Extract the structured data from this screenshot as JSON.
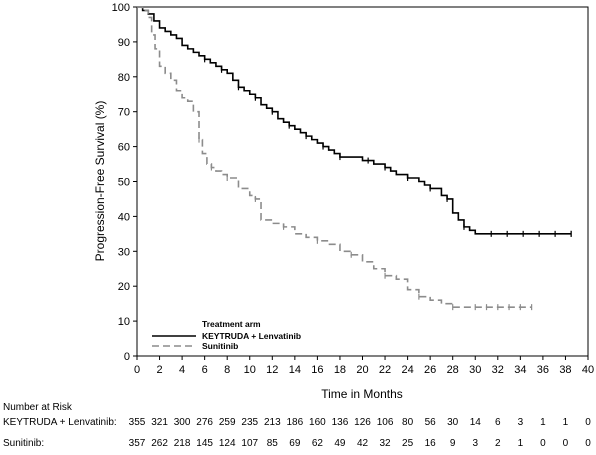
{
  "chart_data": {
    "type": "line",
    "subtype": "kaplan-meier",
    "xlabel": "Time in Months",
    "ylabel": "Progression-Free Survival (%)",
    "xlim": [
      0,
      40
    ],
    "ylim": [
      0,
      100
    ],
    "xticks": [
      0,
      2,
      4,
      6,
      8,
      10,
      12,
      14,
      16,
      18,
      20,
      22,
      24,
      26,
      28,
      30,
      32,
      34,
      36,
      38,
      40
    ],
    "yticks": [
      0,
      10,
      20,
      30,
      40,
      50,
      60,
      70,
      80,
      90,
      100
    ],
    "legend": {
      "title": "Treatment arm",
      "placement": "bottom-left",
      "entries": [
        "KEYTRUDA + Lenvatinib",
        "Sunitinib"
      ]
    },
    "series": [
      {
        "name": "KEYTRUDA + Lenvatinib",
        "color": "#000000",
        "dash": "solid",
        "x": [
          0,
          0.5,
          1,
          1.5,
          2,
          2.5,
          3,
          3.5,
          4,
          4.5,
          5,
          5.5,
          6,
          6.5,
          7,
          7.5,
          8,
          8.5,
          9,
          9.5,
          10,
          10.5,
          11,
          11.5,
          12,
          12.5,
          13,
          13.5,
          14,
          14.5,
          15,
          15.5,
          16,
          16.5,
          17,
          17.5,
          18,
          19,
          20,
          20.5,
          21,
          21.5,
          22,
          22.5,
          23,
          24,
          25,
          25.5,
          26,
          26.5,
          27,
          27.5,
          28,
          28.5,
          29,
          29.5,
          30,
          38.5
        ],
        "y": [
          100,
          99,
          98,
          96,
          94,
          93,
          92,
          91,
          89,
          88,
          87,
          86,
          85,
          84,
          83,
          82,
          81,
          79,
          77,
          76,
          75,
          74,
          72,
          71,
          70,
          68,
          67,
          66,
          65,
          64,
          63,
          62,
          61,
          60,
          59,
          58,
          57,
          57,
          56,
          56,
          55,
          55,
          54,
          53,
          52,
          51,
          50,
          49,
          48,
          48,
          46,
          45,
          41,
          39,
          37,
          36,
          35,
          35
        ]
      },
      {
        "name": "Sunitinib",
        "color": "#8c8c8c",
        "dash": "dashed",
        "x": [
          0,
          0.5,
          1,
          1.3,
          1.6,
          2,
          2.5,
          3,
          3.5,
          4,
          4.5,
          5,
          5.5,
          5.8,
          6.2,
          6.6,
          7,
          7.5,
          8,
          9,
          10,
          10.5,
          11,
          12,
          13,
          14,
          15,
          16,
          17,
          18,
          19,
          20,
          21,
          22,
          23,
          24,
          25,
          26,
          27,
          28,
          29,
          35
        ],
        "y": [
          100,
          99,
          97,
          92,
          88,
          83,
          81,
          79,
          76,
          74,
          73,
          70,
          62,
          58,
          55,
          54,
          53,
          52,
          51,
          48,
          46,
          45,
          39,
          38,
          37,
          35,
          34,
          33,
          32,
          30,
          29,
          27,
          25,
          23,
          22,
          19,
          17,
          16,
          15,
          14,
          14,
          14
        ]
      }
    ],
    "number_at_risk": {
      "heading": "Number at Risk",
      "rows": [
        {
          "label": "KEYTRUDA + Lenvatinib:",
          "values": [
            355,
            321,
            300,
            276,
            259,
            235,
            213,
            186,
            160,
            136,
            126,
            106,
            80,
            56,
            30,
            14,
            6,
            3,
            1,
            1,
            0
          ]
        },
        {
          "label": "Sunitinib:",
          "values": [
            357,
            262,
            218,
            145,
            124,
            107,
            85,
            69,
            62,
            49,
            42,
            32,
            25,
            16,
            9,
            3,
            2,
            1,
            0,
            0,
            0
          ]
        }
      ]
    }
  }
}
